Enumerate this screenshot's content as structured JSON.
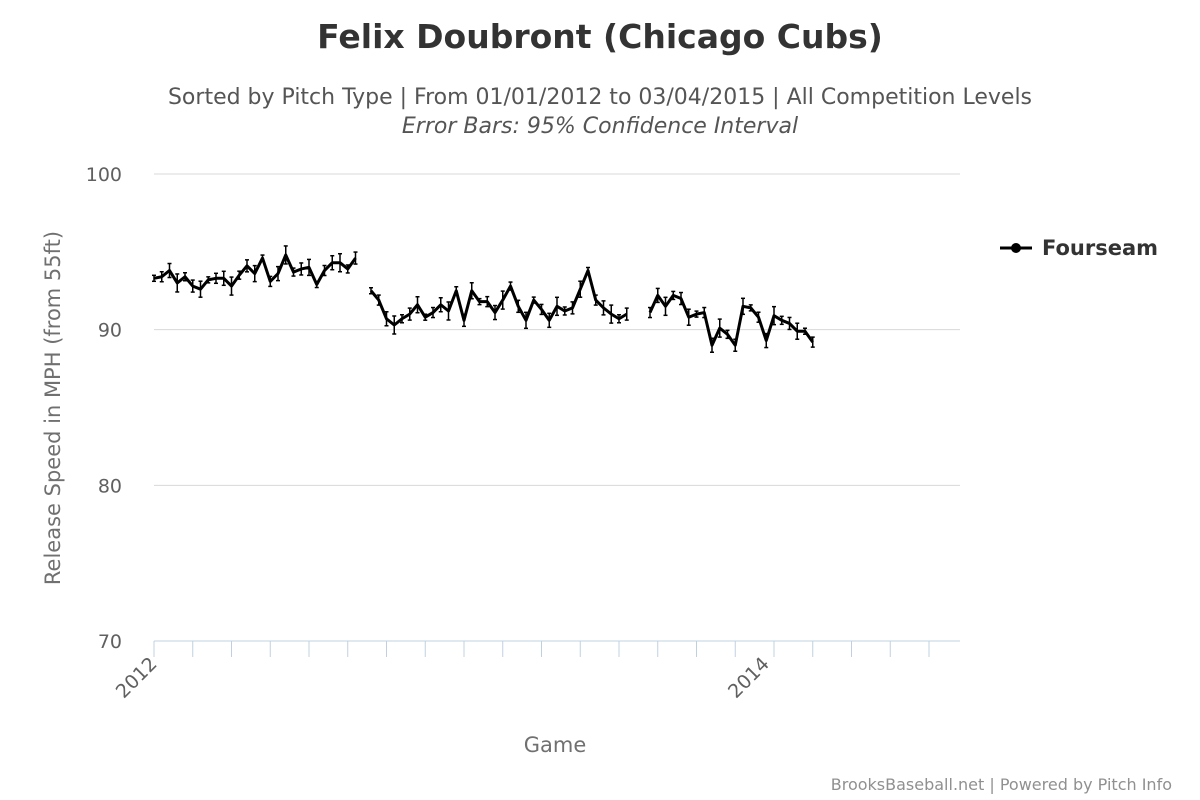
{
  "chart_data": {
    "type": "line",
    "title": "Felix Doubront (Chicago Cubs)",
    "subtitle": "Sorted by Pitch Type | From 01/01/2012 to 03/04/2015 | All Competition Levels",
    "subtitle2": "Error Bars: 95% Confidence Interval",
    "xlabel": "Game",
    "ylabel": "Release Speed in MPH (from 55ft)",
    "ylim": [
      70,
      100
    ],
    "yticks": [
      70,
      80,
      90,
      100
    ],
    "x_range": [
      0,
      104
    ],
    "xtick_labels": [
      {
        "label": "2012",
        "game": 0
      },
      {
        "label": "2014",
        "game": 79
      }
    ],
    "grid": true,
    "legend_position": "right",
    "error_bars": true,
    "credit": "BrooksBaseball.net | Powered by Pitch Info",
    "series": [
      {
        "name": "Fourseam",
        "color": "#000000",
        "marker": "circle",
        "values": [
          93.3,
          93.4,
          93.8,
          93.0,
          93.4,
          92.8,
          92.6,
          93.2,
          93.3,
          93.3,
          92.8,
          93.5,
          94.1,
          93.6,
          94.6,
          93.1,
          93.6,
          94.8,
          93.7,
          93.9,
          94.0,
          92.9,
          93.8,
          94.3,
          94.3,
          93.9,
          94.6,
          null,
          92.5,
          91.9,
          90.7,
          90.3,
          90.7,
          91.0,
          91.6,
          90.8,
          91.1,
          91.6,
          91.2,
          92.5,
          90.6,
          92.5,
          91.8,
          91.8,
          91.1,
          91.9,
          92.8,
          91.5,
          90.6,
          91.9,
          91.3,
          90.6,
          91.5,
          91.2,
          91.4,
          92.6,
          93.8,
          91.9,
          91.4,
          91.0,
          90.7,
          91.0,
          null,
          null,
          91.1,
          92.2,
          91.5,
          92.2,
          92.0,
          90.8,
          91.0,
          91.1,
          89.0,
          90.1,
          89.7,
          89.0,
          91.5,
          91.4,
          90.8,
          89.3,
          90.9,
          90.6,
          90.4,
          89.9,
          89.9,
          89.2,
          null,
          null,
          null,
          null,
          null,
          null,
          null,
          null,
          null,
          null,
          null,
          null,
          null,
          null,
          null,
          null,
          null,
          null,
          null
        ]
      }
    ]
  }
}
